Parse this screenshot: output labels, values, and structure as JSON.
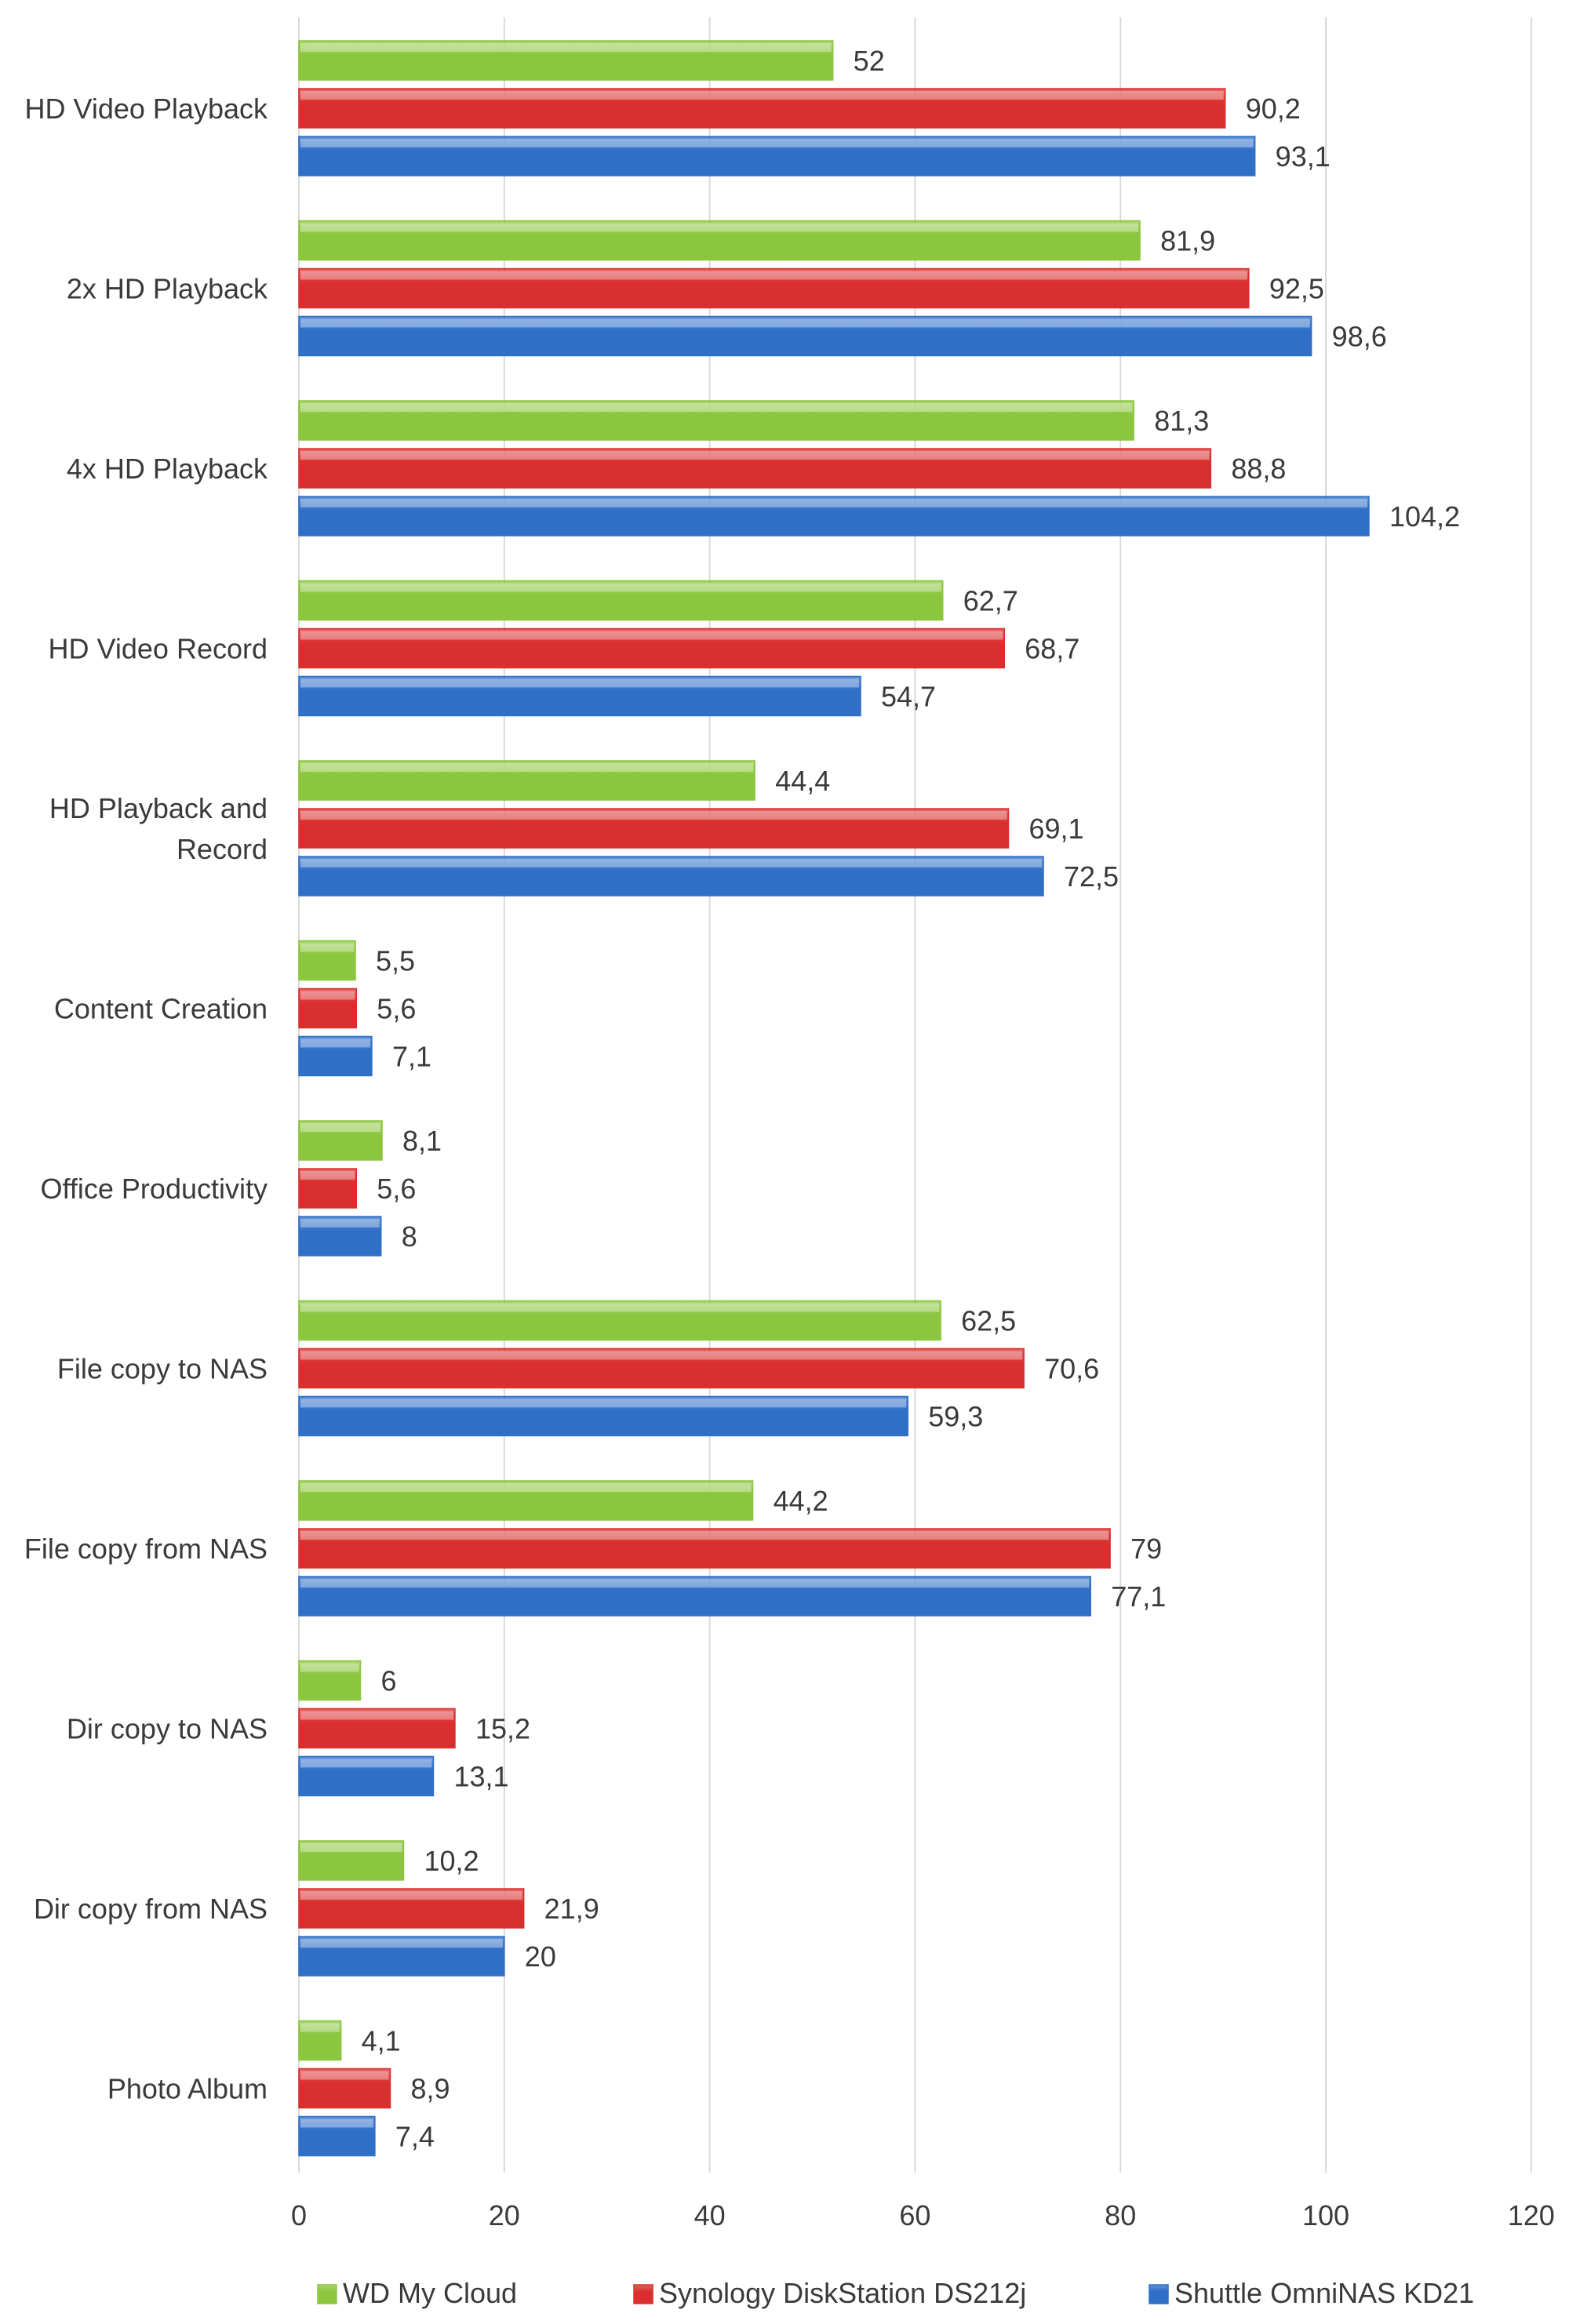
{
  "chart_data": {
    "type": "bar",
    "orientation": "horizontal",
    "title": "",
    "xlabel": "",
    "ylabel": "",
    "xlim": [
      0,
      120
    ],
    "ticks": [
      0,
      20,
      40,
      60,
      80,
      100,
      120
    ],
    "grid": "vertical",
    "legend_position": "bottom",
    "categories": [
      "HD Video Playback",
      "2x HD Playback",
      "4x HD Playback",
      "HD Video Record",
      "HD Playback and Record",
      "Content Creation",
      "Office Productivity",
      "File copy to NAS",
      "File copy from NAS",
      "Dir copy to NAS",
      "Dir copy from NAS",
      "Photo Album"
    ],
    "category_lines": [
      [
        "HD Video Playback"
      ],
      [
        "2x HD Playback"
      ],
      [
        "4x HD Playback"
      ],
      [
        "HD Video Record"
      ],
      [
        "HD Playback and",
        "Record"
      ],
      [
        "Content Creation"
      ],
      [
        "Office Productivity"
      ],
      [
        "File copy to NAS"
      ],
      [
        "File copy from NAS"
      ],
      [
        "Dir copy to NAS"
      ],
      [
        "Dir copy from NAS"
      ],
      [
        "Photo Album"
      ]
    ],
    "series": [
      {
        "name": "WD My Cloud",
        "color": "#8cc63f",
        "values": [
          52,
          81.9,
          81.3,
          62.7,
          44.4,
          5.5,
          8.1,
          62.5,
          44.2,
          6,
          10.2,
          4.1
        ],
        "labels": [
          "52",
          "81,9",
          "81,3",
          "62,7",
          "44,4",
          "5,5",
          "8,1",
          "62,5",
          "44,2",
          "6",
          "10,2",
          "4,1"
        ]
      },
      {
        "name": "Synology DiskStation DS212j",
        "color": "#d9302f",
        "values": [
          90.2,
          92.5,
          88.8,
          68.7,
          69.1,
          5.6,
          5.6,
          70.6,
          79,
          15.2,
          21.9,
          8.9
        ],
        "labels": [
          "90,2",
          "92,5",
          "88,8",
          "68,7",
          "69,1",
          "5,6",
          "5,6",
          "70,6",
          "79",
          "15,2",
          "21,9",
          "8,9"
        ]
      },
      {
        "name": "Shuttle OmniNAS KD21",
        "color": "#2f6fc8",
        "values": [
          93.1,
          98.6,
          104.2,
          54.7,
          72.5,
          7.1,
          8,
          59.3,
          77.1,
          13.1,
          20,
          7.4
        ],
        "labels": [
          "93,1",
          "98,6",
          "104,2",
          "54,7",
          "72,5",
          "7,1",
          "8",
          "59,3",
          "77,1",
          "13,1",
          "20",
          "7,4"
        ]
      }
    ]
  }
}
